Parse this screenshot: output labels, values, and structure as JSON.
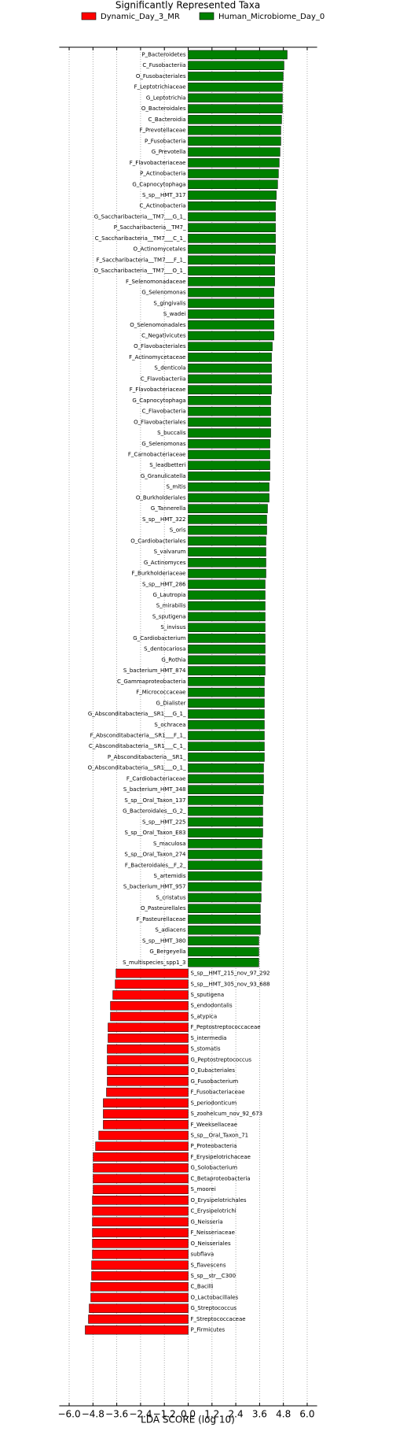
{
  "chart_data": {
    "type": "barh",
    "title": "Significantly Represented Taxa",
    "xlabel": "LDA SCORE (log 10)",
    "xlim": [
      -6.5,
      6.5
    ],
    "xticks": [
      {
        "value": -6,
        "label": "−6.0"
      },
      {
        "value": -4.8,
        "label": "−4.8"
      },
      {
        "value": -3.6,
        "label": "−3.6"
      },
      {
        "value": -2.4,
        "label": "−2.4"
      },
      {
        "value": -1.2,
        "label": "−1.2"
      },
      {
        "value": 0,
        "label": "0.0"
      },
      {
        "value": 1.2,
        "label": "1.2"
      },
      {
        "value": 2.4,
        "label": "2.4"
      },
      {
        "value": 3.6,
        "label": "3.6"
      },
      {
        "value": 4.8,
        "label": "4.8"
      },
      {
        "value": 6,
        "label": "6.0"
      }
    ],
    "grid": true,
    "series": [
      {
        "name": "Dynamic_Day_3_MR",
        "color": "#ff0000",
        "categories": [
          "S_sp__HMT_215_nov_97_292",
          "S_sp__HMT_305_nov_93_688",
          "S_sputigena",
          "S_endodontalis",
          "S_atypica",
          "F_Peptostreptococcaceae",
          "S_intermedia",
          "S_stomatis",
          "G_Peptostreptococcus",
          "O_Eubacteriales",
          "G_Fusobacterium",
          "F_Fusobacteriaceae",
          "S_periodonticum",
          "S_zoohelcum_nov_92_673",
          "F_Weeksellaceae",
          "S_sp__Oral_Taxon_71",
          "P_Proteobacteria",
          "F_Erysipelotrichaceae",
          "G_Solobacterium",
          "C_Betaproteobacteria",
          "S_moorei",
          "O_Erysipelotrichales",
          "C_Erysipelotrichi",
          "G_Neisseria",
          "F_Neisseriaceae",
          "O_Neisseriales",
          "subflava",
          "S_flavescens",
          "S_sp__str__C300",
          "C_Bacilli",
          "O_Lactobacillales",
          "G_Streptococcus",
          "F_Streptococcaceae",
          "P_Firmicutes"
        ],
        "values": [
          -3.64,
          -3.68,
          -3.8,
          -3.92,
          -3.92,
          -4.04,
          -4.04,
          -4.08,
          -4.08,
          -4.08,
          -4.08,
          -4.12,
          -4.28,
          -4.28,
          -4.28,
          -4.51,
          -4.67,
          -4.79,
          -4.79,
          -4.79,
          -4.79,
          -4.83,
          -4.83,
          -4.83,
          -4.83,
          -4.83,
          -4.83,
          -4.87,
          -4.87,
          -4.91,
          -4.91,
          -4.99,
          -5.03,
          -5.19
        ]
      },
      {
        "name": "Human_Microbiome_Day_0",
        "color": "#008000",
        "categories": [
          "P_Bacteroidetes",
          "C_Fusobacteriia",
          "O_Fusobacteriales",
          "F_Leptotrichiaceae",
          "G_Leptotrichia",
          "O_Bacteroidales",
          "C_Bacteroidia",
          "F_Prevotellaceae",
          "P_Fusobacteria",
          "G_Prevotella",
          "F_Flavobacteriaceae",
          "P_Actinobacteria",
          "G_Capnocytophaga",
          "S_sp__HMT_317",
          "C_Actinobacteria",
          "G_Saccharibacteria__TM7___G_1_",
          "P_Saccharibacteria__TM7_",
          "C_Saccharibacteria__TM7___C_1_",
          "O_Actinomycetales",
          "F_Saccharibacteria__TM7___F_1_",
          "O_Saccharibacteria__TM7___O_1_",
          "F_Selenomonadaceae",
          "G_Selenomonas",
          "S_gingivalis",
          "S_wadei",
          "O_Selenomonadales",
          "C_Negativicutes",
          "O_Flavobacteriales",
          "F_Actinomycetaceae",
          "S_denticola",
          "C_Flavobacteriia",
          "F_Flavobacteriaceae",
          "G_Capnocytophaga",
          "C_Flavobacteria",
          "O_Flavobacteriales",
          "S_buccalis",
          "G_Selenomonas",
          "F_Carnobacteriaceae",
          "S_leadbetteri",
          "G_Granulicatella",
          "S_mitis",
          "O_Burkholderiales",
          "G_Tannerella",
          "S_sp__HMT_322",
          "S_oris",
          "O_Cardiobacteriales",
          "S_valvarum",
          "G_Actinomyces",
          "F_Burkholderiaceae",
          "S_sp__HMT_286",
          "G_Lautropia",
          "S_mirabilis",
          "S_sputigena",
          "S_invisus",
          "G_Cardiobacterium",
          "S_dentocariosa",
          "G_Rothia",
          "S_bacterium_HMT_874",
          "C_Gammaproteobacteria",
          "F_Micrococcaceae",
          "G_Dialister",
          "G_Absconditabacteria__SR1___G_1_",
          "S_ochracea",
          "F_Absconditabacteria__SR1___F_1_",
          "C_Absconditabacteria__SR1___C_1_",
          "P_Absconditabacteria__SR1_",
          "O_Absconditabacteria__SR1___O_1_",
          "F_Cardiobacteriaceae",
          "S_bacterium_HMT_348",
          "S_sp__Oral_Taxon_137",
          "G_Bacteroidales__G_2_",
          "S_sp__HMT_225",
          "S_sp__Oral_Taxon_E83",
          "S_maculosa",
          "S_sp__Oral_Taxon_274",
          "F_Bacteroidales__F_2_",
          "S_artemidis",
          "S_bacterium_HMT_957",
          "S_cristatus",
          "O_Pasteurellales",
          "F_Pasteurellaceae",
          "S_adiacens",
          "S_sp__HMT_380",
          "G_Bergeyella",
          "S_multispecies_spp1_3"
        ],
        "values": [
          4.99,
          4.83,
          4.79,
          4.75,
          4.75,
          4.75,
          4.71,
          4.67,
          4.67,
          4.63,
          4.59,
          4.55,
          4.51,
          4.44,
          4.4,
          4.4,
          4.4,
          4.4,
          4.4,
          4.36,
          4.36,
          4.36,
          4.32,
          4.32,
          4.32,
          4.32,
          4.32,
          4.24,
          4.2,
          4.2,
          4.2,
          4.2,
          4.16,
          4.16,
          4.16,
          4.16,
          4.12,
          4.12,
          4.12,
          4.12,
          4.08,
          4.08,
          4.0,
          3.96,
          3.96,
          3.92,
          3.92,
          3.92,
          3.92,
          3.88,
          3.88,
          3.88,
          3.88,
          3.88,
          3.88,
          3.88,
          3.88,
          3.88,
          3.84,
          3.84,
          3.84,
          3.84,
          3.84,
          3.84,
          3.84,
          3.84,
          3.8,
          3.8,
          3.8,
          3.76,
          3.76,
          3.76,
          3.76,
          3.72,
          3.72,
          3.72,
          3.72,
          3.68,
          3.68,
          3.64,
          3.64,
          3.64,
          3.56,
          3.56,
          3.56
        ]
      }
    ]
  }
}
